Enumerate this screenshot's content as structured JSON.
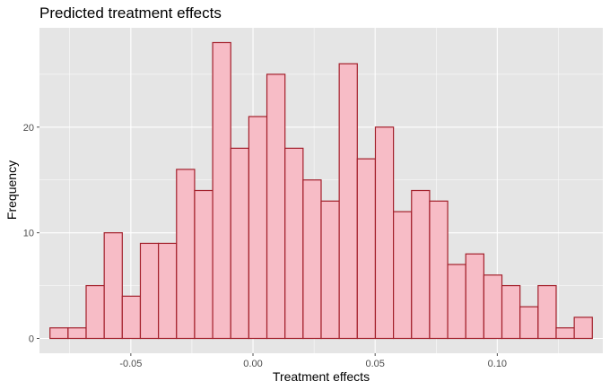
{
  "chart_data": {
    "type": "bar",
    "title": "Predicted treatment effects",
    "xlabel": "Treatment effects",
    "ylabel": "Frequency",
    "x_ticks": [
      "-0.05",
      "0.00",
      "0.05",
      "0.10"
    ],
    "x_tick_values": [
      -0.05,
      0.0,
      0.05,
      0.1
    ],
    "y_ticks": [
      "0",
      "10",
      "20"
    ],
    "y_tick_values": [
      0,
      10,
      20
    ],
    "xlim": [
      -0.0874,
      0.1432
    ],
    "ylim": [
      -1.4,
      29.4
    ],
    "bin_width": 0.0074,
    "first_bin_center": -0.0794,
    "counts": [
      1,
      1,
      5,
      10,
      4,
      9,
      9,
      16,
      14,
      28,
      18,
      21,
      25,
      18,
      15,
      13,
      26,
      17,
      20,
      12,
      14,
      13,
      7,
      8,
      6,
      5,
      3,
      5,
      1,
      2
    ],
    "grid": true,
    "colors": {
      "panel_background": "#e5e5e5",
      "grid_major": "#ffffff",
      "bar_fill": "#f7bcc6",
      "bar_stroke": "#a3202b",
      "axis_tick": "#4d4d4d"
    }
  }
}
